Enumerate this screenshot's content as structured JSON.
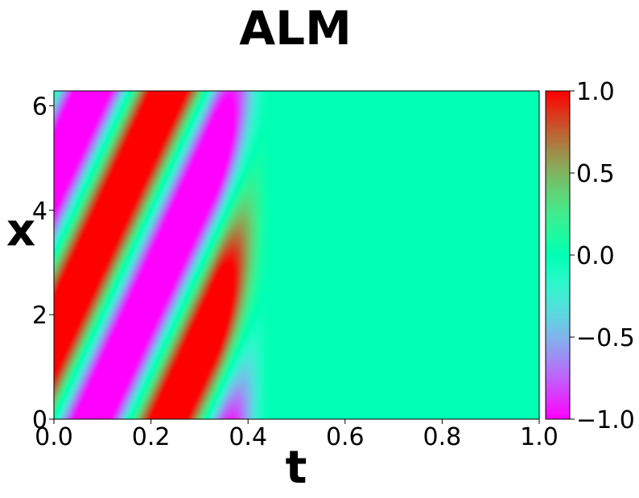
{
  "chart_data": {
    "type": "heatmap",
    "title": "ALM",
    "xlabel": "t",
    "ylabel": "x",
    "xlim": [
      0.0,
      1.0
    ],
    "ylim": [
      0.0,
      6.283
    ],
    "x_ticks": [
      "0.0",
      "0.2",
      "0.4",
      "0.6",
      "0.8",
      "1.0"
    ],
    "x_tick_values": [
      0.0,
      0.2,
      0.4,
      0.6,
      0.8,
      1.0
    ],
    "y_ticks": [
      "0",
      "2",
      "4",
      "6"
    ],
    "y_tick_values": [
      0,
      2,
      4,
      6
    ],
    "colorbar": {
      "colormap": "rainbow",
      "range": [
        -1.0,
        1.0
      ],
      "ticks": [
        "1.0",
        "0.5",
        "0.0",
        "−0.5",
        "−1.0"
      ],
      "tick_values": [
        1.0,
        0.5,
        0.0,
        -0.5,
        -1.0
      ]
    },
    "field": {
      "description_of_pattern": "traveling wave u = sin(x - 20 t), damped to 0 for t > 0.4",
      "wave_speed": 20,
      "decay_start_t": 0.33,
      "decay_end_t": 0.45
    }
  }
}
